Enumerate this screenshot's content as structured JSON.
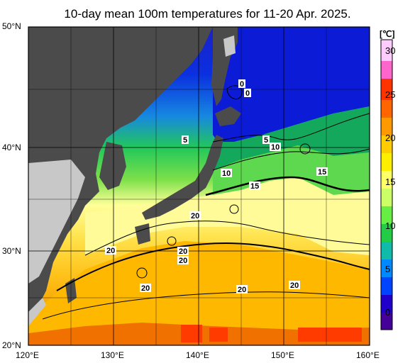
{
  "title": "10-day mean 100m temperatures for 11-20 Apr. 2025.",
  "unit": "[℃]",
  "lat_labels": [
    "50°N",
    "40°N",
    "30°N",
    "20°N"
  ],
  "lon_labels": [
    "120°E",
    "130°E",
    "140°E",
    "150°E",
    "160°E"
  ],
  "colorbar": {
    "labels": [
      "30",
      "25",
      "20",
      "15",
      "10",
      "5",
      "0"
    ],
    "colors": [
      "#ffccff",
      "#ff66cc",
      "#ff3300",
      "#ff6600",
      "#ff9900",
      "#ffcc00",
      "#ffee00",
      "#ffff66",
      "#ccff66",
      "#66ee44",
      "#22cc44",
      "#11bbaa",
      "#0088ff",
      "#0044ff",
      "#2200cc",
      "#440099"
    ]
  },
  "contour_labels": [
    "0",
    "0",
    "5",
    "5",
    "10",
    "10",
    "15",
    "15",
    "20",
    "20",
    "20",
    "20",
    "20",
    "20",
    "20"
  ],
  "colors": {
    "land": "#4b4b4b",
    "land_light": "#c8c8c8",
    "background": "#ffffff"
  }
}
